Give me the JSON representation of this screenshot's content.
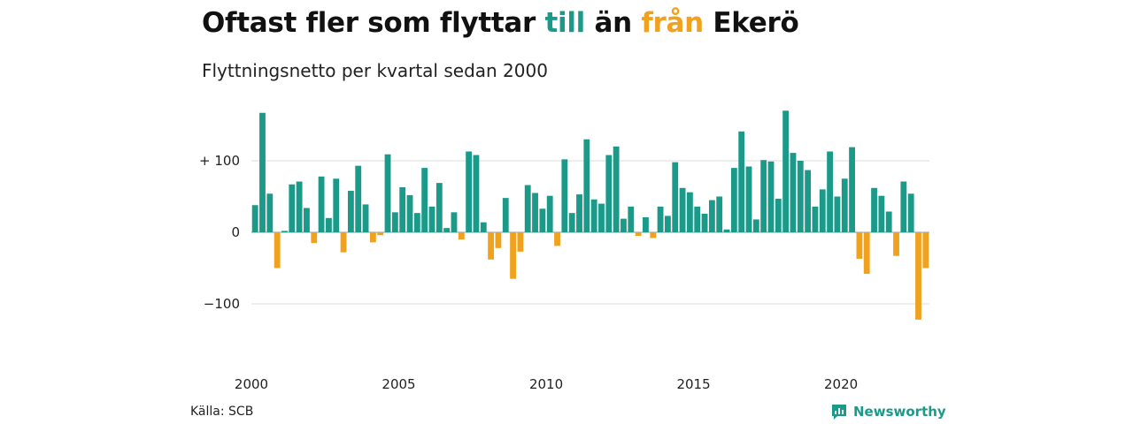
{
  "title": {
    "part1": "Oftast fler som flyttar ",
    "till": "till",
    "part2": " än ",
    "fran": "från",
    "part3": " Ekerö"
  },
  "subtitle": "Flyttningsnetto per kvartal sedan 2000",
  "source": "Källa: SCB",
  "brand": {
    "name": "Newsworthy",
    "icon": "newsworthy-logo-icon"
  },
  "colors": {
    "positive": "#1b9a8a",
    "negative": "#f0a21f",
    "grid": "#dddddd",
    "zero": "#999999"
  },
  "chart_data": {
    "type": "bar",
    "title": "Oftast fler som flyttar till än från Ekerö",
    "subtitle": "Flyttningsnetto per kvartal sedan 2000",
    "xlabel": "",
    "ylabel": "",
    "x_ticks": [
      "2000",
      "2005",
      "2010",
      "2015",
      "2020"
    ],
    "y_ticks": [
      {
        "value": 100,
        "label": "+ 100"
      },
      {
        "value": 0,
        "label": "0"
      },
      {
        "value": -100,
        "label": "−100"
      }
    ],
    "ylim": [
      -155,
      175
    ],
    "start": "2000 Q1",
    "grid": true,
    "values": [
      38,
      167,
      54,
      -50,
      2,
      67,
      71,
      34,
      -15,
      78,
      20,
      75,
      -28,
      58,
      93,
      39,
      -14,
      -4,
      109,
      28,
      63,
      52,
      27,
      90,
      36,
      69,
      6,
      28,
      -10,
      113,
      108,
      14,
      -38,
      -22,
      48,
      -65,
      -27,
      66,
      55,
      33,
      51,
      -19,
      102,
      27,
      53,
      130,
      46,
      40,
      108,
      120,
      19,
      36,
      -5,
      21,
      -8,
      36,
      23,
      98,
      62,
      56,
      36,
      26,
      45,
      50,
      4,
      90,
      141,
      92,
      18,
      101,
      99,
      47,
      170,
      111,
      100,
      87,
      36,
      60,
      113,
      50,
      75,
      119,
      -37,
      -58,
      62,
      51,
      29,
      -33,
      71,
      54,
      -122,
      -50
    ]
  }
}
